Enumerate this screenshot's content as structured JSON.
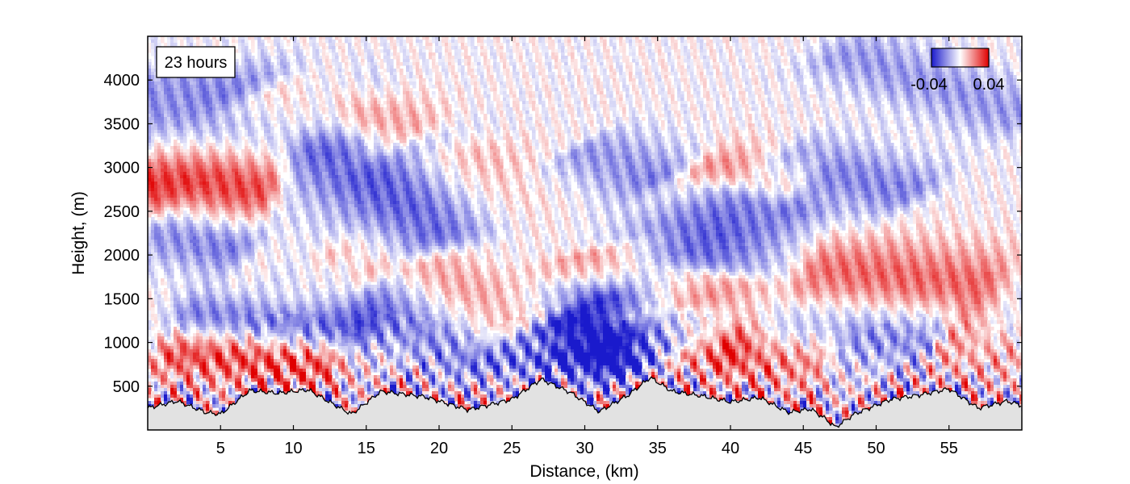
{
  "chart_data": {
    "type": "heatmap",
    "title": "",
    "annotation": "23 hours",
    "xlabel": "Distance, (km)",
    "ylabel": "Height, (m)",
    "xlim": [
      0,
      60
    ],
    "ylim": [
      0,
      4500
    ],
    "x_ticks": [
      5,
      10,
      15,
      20,
      25,
      30,
      35,
      40,
      45,
      50,
      55
    ],
    "x_tick_labels": [
      "5",
      "10",
      "15",
      "20",
      "25",
      "30",
      "35",
      "40",
      "45",
      "50",
      "55"
    ],
    "y_ticks": [
      500,
      1000,
      1500,
      2000,
      2500,
      3000,
      3500,
      4000
    ],
    "y_tick_labels": [
      "500",
      "1000",
      "1500",
      "2000",
      "2500",
      "3000",
      "3500",
      "4000"
    ],
    "colorbar": {
      "min": -0.04,
      "max": 0.04,
      "min_label": "-0.04",
      "max_label": "0.04",
      "low_color": "#1a1acc",
      "mid_color": "#ffffff",
      "high_color": "#e00000"
    },
    "terrain_color": "#e2e2e2",
    "terrain_profile": {
      "x": [
        0,
        2,
        4,
        5,
        7,
        9,
        11,
        13,
        14,
        16,
        19,
        22,
        25,
        27,
        29,
        31,
        33,
        34.5,
        36,
        38,
        40,
        42,
        44,
        45.5,
        46.5,
        47.2,
        48.5,
        51,
        53,
        55,
        57,
        59,
        60
      ],
      "height": [
        250,
        330,
        200,
        180,
        450,
        420,
        460,
        270,
        180,
        440,
        380,
        230,
        350,
        580,
        430,
        210,
        400,
        600,
        440,
        390,
        320,
        370,
        200,
        240,
        130,
        30,
        180,
        350,
        400,
        470,
        250,
        330,
        280
      ]
    },
    "perturbation_bands": [
      {
        "sign": "positive",
        "x_start": 0,
        "h_start": 2900,
        "x_end": 8,
        "h_end": 2800,
        "width": 380,
        "strength": 0.9
      },
      {
        "sign": "negative",
        "x_start": 0,
        "h_start": 3400,
        "x_end": 12,
        "h_end": 3600,
        "width": 300,
        "strength": 0.6
      },
      {
        "sign": "negative",
        "x_start": 0,
        "h_start": 4000,
        "x_end": 15,
        "h_end": 3900,
        "width": 230,
        "strength": 0.35
      },
      {
        "sign": "positive",
        "x_start": 9,
        "h_start": 3850,
        "x_end": 17,
        "h_end": 3350,
        "width": 260,
        "strength": 0.8
      },
      {
        "sign": "negative",
        "x_start": 14,
        "h_start": 3200,
        "x_end": 31,
        "h_end": 1100,
        "width": 330,
        "strength": 0.85
      },
      {
        "sign": "positive",
        "x_start": 21,
        "h_start": 3100,
        "x_end": 28,
        "h_end": 1800,
        "width": 250,
        "strength": 0.55
      },
      {
        "sign": "negative",
        "x_start": 1,
        "h_start": 2300,
        "x_end": 10,
        "h_end": 1950,
        "width": 250,
        "strength": 0.7
      },
      {
        "sign": "positive",
        "x_start": 8,
        "h_start": 2000,
        "x_end": 15,
        "h_end": 1800,
        "width": 250,
        "strength": 0.7
      },
      {
        "sign": "positive",
        "x_start": 20,
        "h_start": 1900,
        "x_end": 27,
        "h_end": 1000,
        "width": 280,
        "strength": 0.9
      },
      {
        "sign": "negative",
        "x_start": 13,
        "h_start": 1800,
        "x_end": 23,
        "h_end": 800,
        "width": 220,
        "strength": 0.7
      },
      {
        "sign": "negative",
        "x_start": 28,
        "h_start": 1200,
        "x_end": 34,
        "h_end": 800,
        "width": 300,
        "strength": 1.0
      },
      {
        "sign": "positive",
        "x_start": 31,
        "h_start": 2000,
        "x_end": 35,
        "h_end": 1400,
        "width": 250,
        "strength": 0.6
      },
      {
        "sign": "negative",
        "x_start": 34,
        "h_start": 1500,
        "x_end": 41,
        "h_end": 2600,
        "width": 300,
        "strength": 0.75
      },
      {
        "sign": "positive",
        "x_start": 35,
        "h_start": 900,
        "x_end": 39,
        "h_end": 1700,
        "width": 250,
        "strength": 0.7
      },
      {
        "sign": "negative",
        "x_start": 30,
        "h_start": 3200,
        "x_end": 35,
        "h_end": 2900,
        "width": 260,
        "strength": 0.45
      },
      {
        "sign": "positive",
        "x_start": 38,
        "h_start": 3000,
        "x_end": 44,
        "h_end": 2800,
        "width": 260,
        "strength": 0.45
      },
      {
        "sign": "negative",
        "x_start": 44,
        "h_start": 3100,
        "x_end": 52,
        "h_end": 2700,
        "width": 260,
        "strength": 0.55
      },
      {
        "sign": "positive",
        "x_start": 46,
        "h_start": 1800,
        "x_end": 57,
        "h_end": 1600,
        "width": 350,
        "strength": 0.65
      },
      {
        "sign": "negative",
        "x_start": 44,
        "h_start": 1200,
        "x_end": 60,
        "h_end": 1000,
        "width": 280,
        "strength": 0.6
      },
      {
        "sign": "positive",
        "x_start": 55,
        "h_start": 1000,
        "x_end": 60,
        "h_end": 900,
        "width": 260,
        "strength": 0.8
      },
      {
        "sign": "positive",
        "x_start": 40,
        "h_start": 900,
        "x_end": 46,
        "h_end": 800,
        "width": 260,
        "strength": 0.6
      },
      {
        "sign": "negative",
        "x_start": 48,
        "h_start": 4300,
        "x_end": 60,
        "h_end": 3600,
        "width": 240,
        "strength": 0.45
      },
      {
        "sign": "positive",
        "x_start": 2,
        "h_start": 900,
        "x_end": 12,
        "h_end": 750,
        "width": 220,
        "strength": 0.75
      },
      {
        "sign": "negative",
        "x_start": 3,
        "h_start": 1300,
        "x_end": 14,
        "h_end": 1100,
        "width": 200,
        "strength": 0.65
      }
    ]
  }
}
